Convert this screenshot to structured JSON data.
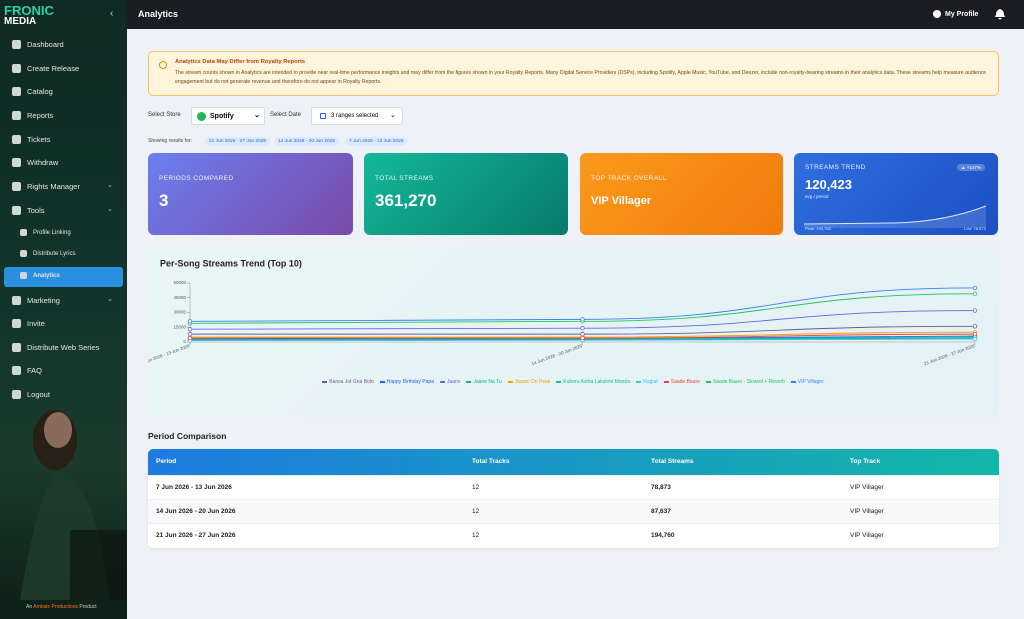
{
  "sidebar": {
    "logo": [
      "FRONIC",
      "MEDIA"
    ],
    "nav": [
      "Dashboard",
      "Create Release",
      "Catalog",
      "Reports",
      "Tickets",
      "Withdraw",
      "Rights Manager",
      "Tools",
      "Profile Linking",
      "Distribute Lyrics",
      "Analytics",
      "Marketing",
      "Invite",
      "Distribute Web Series",
      "FAQ",
      "Logout"
    ],
    "footer": [
      "An",
      "Ambale Productions",
      "Product"
    ]
  },
  "header": {
    "title": "Analytics",
    "profile": "My Profile"
  },
  "alert": {
    "title": "Analytics Data May Differ from Royalty Reports",
    "body": "The stream counts shown in Analytics are intended to provide near real-time performance insights and may differ from the figures shown in your Royalty Reports. Many Digital Service Providers (DSPs), including Spotify, Apple Music, YouTube, and Deezer, include non-royalty-bearing streams in their analytics data. These streams help measure audience engagement but do not generate revenue and therefore do not appear in Royalty Reports."
  },
  "filters": {
    "store_label": "Select Store",
    "store": "Spotify",
    "date_label": "Select Date",
    "date": "3 ranges selected"
  },
  "results": {
    "label": "Showing results for:",
    "chips": [
      "21 Jun 2026 - 27 Jun 2026",
      "14 Jun 2026 - 20 Jun 2026",
      "7 Jun 2026 - 13 Jun 2026"
    ]
  },
  "cards": [
    {
      "label": "PERIODS COMPARED",
      "value": "3"
    },
    {
      "label": "TOTAL STREAMS",
      "value": "361,270"
    },
    {
      "label": "TOP TRACK OVERALL",
      "value": "VIP Villager"
    },
    {
      "label": "STREAMS TREND",
      "value": "120,423",
      "sub": "avg / period",
      "badge": "▲ +147%",
      "peak": "Peak: 194,760",
      "low": "Low: 78,873"
    }
  ],
  "trend_chart": {
    "type": "line",
    "title": "Per-Song Streams Trend (Top 10)",
    "categories": [
      "7 Jun 2026 - 13 Jun 2026",
      "14 Jun 2026 - 20 Jun 2026",
      "21 Jun 2026 - 27 Jun 2026"
    ],
    "ylim": [
      0,
      60000
    ],
    "yticks": [
      0,
      15000,
      30000,
      45000,
      60000
    ],
    "series": [
      {
        "name": "Bansa Jut Gna Bolo",
        "color": "#6b5b95",
        "values": [
          8000,
          8000,
          16000
        ]
      },
      {
        "name": "Happy Birthday Papa",
        "color": "#2563eb",
        "values": [
          3000,
          3500,
          6000
        ]
      },
      {
        "name": "Jaans",
        "color": "#6366f1",
        "values": [
          13000,
          14000,
          32000
        ]
      },
      {
        "name": "Jaane Na Tu",
        "color": "#10b981",
        "values": [
          2000,
          2500,
          4000
        ]
      },
      {
        "name": "Jaaani On Peak",
        "color": "#f59e0b",
        "values": [
          5000,
          5000,
          10000
        ]
      },
      {
        "name": "Kubera Ashta Lakshmi Mantra",
        "color": "#14b8a6",
        "values": [
          2500,
          3000,
          5000
        ]
      },
      {
        "name": "Rajput",
        "color": "#38bdf8",
        "values": [
          1500,
          1800,
          3000
        ]
      },
      {
        "name": "Saade Baare",
        "color": "#ef4444",
        "values": [
          4000,
          4000,
          8000
        ]
      },
      {
        "name": "Saade Baare - Slowed + Reverb",
        "color": "#22c55e",
        "values": [
          19000,
          21000,
          49000
        ]
      },
      {
        "name": "VIP Villager",
        "color": "#3b82f6",
        "values": [
          21000,
          23000,
          55000
        ]
      }
    ]
  },
  "table": {
    "title": "Period Comparison",
    "headers": [
      "Period",
      "Total Tracks",
      "Total Streams",
      "Top Track"
    ],
    "rows": [
      [
        "7 Jun 2026 - 13 Jun 2026",
        "12",
        "78,873",
        "VIP Villager"
      ],
      [
        "14 Jun 2026 - 20 Jun 2026",
        "12",
        "87,637",
        "VIP Villager"
      ],
      [
        "21 Jun 2026 - 27 Jun 2026",
        "12",
        "194,760",
        "VIP Villager"
      ]
    ]
  }
}
